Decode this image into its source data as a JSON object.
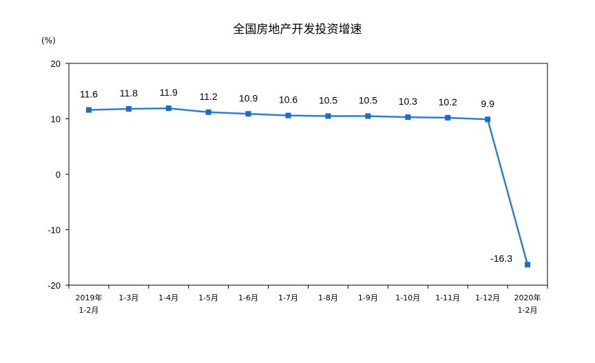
{
  "chart_data": {
    "type": "line",
    "title": "全国房地产开发投资增速",
    "ylabel": "(%)",
    "xlabel": "",
    "ylim": [
      -20,
      20
    ],
    "yticks": [
      20,
      10,
      0,
      -10,
      -20
    ],
    "categories": [
      [
        "2019年",
        "1-2月"
      ],
      [
        "1-3月"
      ],
      [
        "1-4月"
      ],
      [
        "1-5月"
      ],
      [
        "1-6月"
      ],
      [
        "1-7月"
      ],
      [
        "1-8月"
      ],
      [
        "1-9月"
      ],
      [
        "1-10月"
      ],
      [
        "1-11月"
      ],
      [
        "1-12月"
      ],
      [
        "2020年",
        "1-2月"
      ]
    ],
    "series": [
      {
        "values": [
          11.6,
          11.8,
          11.9,
          11.2,
          10.9,
          10.6,
          10.5,
          10.5,
          10.3,
          10.2,
          9.9,
          -16.3
        ],
        "labels": [
          "11.6",
          "11.8",
          "11.9",
          "11.2",
          "10.9",
          "10.6",
          "10.5",
          "10.5",
          "10.3",
          "10.2",
          "9.9",
          "-16.3"
        ]
      }
    ],
    "colors": {
      "line": "#2e7bd6",
      "marker": "#1a6ccf",
      "axis": "#000000"
    },
    "grid": false,
    "legend": "none"
  }
}
